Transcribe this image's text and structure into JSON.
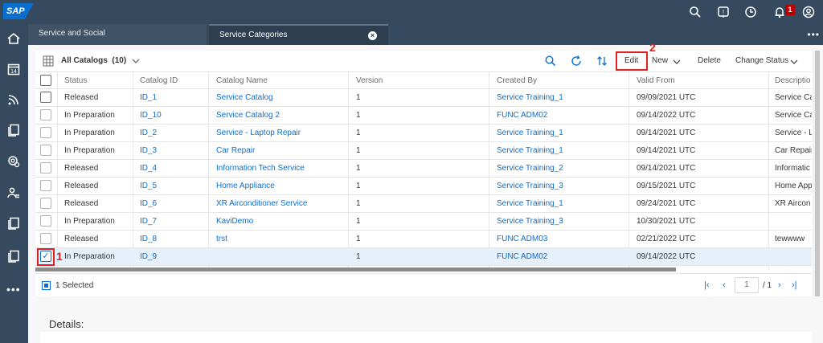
{
  "app": {
    "logo": "SAP"
  },
  "shell": {
    "icons": [
      "search-icon",
      "help-icon",
      "clock-icon",
      "bell-icon",
      "user-icon"
    ],
    "notification_count": "1"
  },
  "tabs": [
    {
      "label": "Service and Social",
      "active": false
    },
    {
      "label": "Service Categories",
      "active": true
    }
  ],
  "sidebar": {
    "icons": [
      "home-icon",
      "calendar-icon",
      "feed-icon",
      "documents-icon",
      "settings-search-icon",
      "users-icon",
      "documents-icon-2",
      "documents-icon-3",
      "more-icon"
    ]
  },
  "toolbar": {
    "title": "All Catalogs",
    "count": "(10)",
    "edit_label": "Edit",
    "new_label": "New",
    "delete_label": "Delete",
    "change_status_label": "Change Status",
    "annotation_edit": "2",
    "annotation_checkbox": "1"
  },
  "table": {
    "columns": [
      "Status",
      "Catalog ID",
      "Catalog Name",
      "Version",
      "Created By",
      "Valid From",
      "Descriptio"
    ],
    "rows": [
      {
        "status": "Released",
        "id": "ID_1",
        "name": "Service Catalog",
        "version": "1",
        "created_by": "Service Training_1",
        "valid_from": "09/09/2021 UTC",
        "desc": "Service Ca",
        "selected": false
      },
      {
        "status": "In Preparation",
        "id": "ID_10",
        "name": "Service Catalog 2",
        "version": "1",
        "created_by": "FUNC ADM02",
        "valid_from": "09/14/2022 UTC",
        "desc": "Service Ca",
        "selected": false
      },
      {
        "status": "In Preparation",
        "id": "ID_2",
        "name": "Service - Laptop Repair",
        "version": "1",
        "created_by": "Service Training_1",
        "valid_from": "09/14/2021 UTC",
        "desc": "Service - L",
        "selected": false
      },
      {
        "status": "In Preparation",
        "id": "ID_3",
        "name": "Car Repair",
        "version": "1",
        "created_by": "Service Training_1",
        "valid_from": "09/14/2021 UTC",
        "desc": "Car Repair",
        "selected": false
      },
      {
        "status": "Released",
        "id": "ID_4",
        "name": "Information Tech Service",
        "version": "1",
        "created_by": "Service Training_2",
        "valid_from": "09/14/2021 UTC",
        "desc": "Informatic",
        "selected": false
      },
      {
        "status": "Released",
        "id": "ID_5",
        "name": "Home Appliance",
        "version": "1",
        "created_by": "Service Training_3",
        "valid_from": "09/15/2021 UTC",
        "desc": "Home App",
        "selected": false
      },
      {
        "status": "Released",
        "id": "ID_6",
        "name": "XR Airconditioner Service",
        "version": "1",
        "created_by": "Service Training_1",
        "valid_from": "09/24/2021 UTC",
        "desc": "XR Aircon",
        "selected": false
      },
      {
        "status": "In Preparation",
        "id": "ID_7",
        "name": "KaviDemo",
        "version": "1",
        "created_by": "Service Training_3",
        "valid_from": "10/30/2021 UTC",
        "desc": "",
        "selected": false
      },
      {
        "status": "Released",
        "id": "ID_8",
        "name": "trst",
        "version": "1",
        "created_by": "FUNC ADM03",
        "valid_from": "02/21/2022 UTC",
        "desc": "tewwww",
        "selected": false
      },
      {
        "status": "In Preparation",
        "id": "ID_9",
        "name": "",
        "version": "1",
        "created_by": "FUNC ADM02",
        "valid_from": "09/14/2022 UTC",
        "desc": "",
        "selected": true
      }
    ]
  },
  "footer": {
    "selected_text": "1 Selected",
    "page_value": "1",
    "page_total": "/ 1"
  },
  "details": {
    "title": "Details:"
  },
  "colors": {
    "shell": "#354a5f",
    "link": "#0a6ed1",
    "highlight": "#e02020"
  }
}
